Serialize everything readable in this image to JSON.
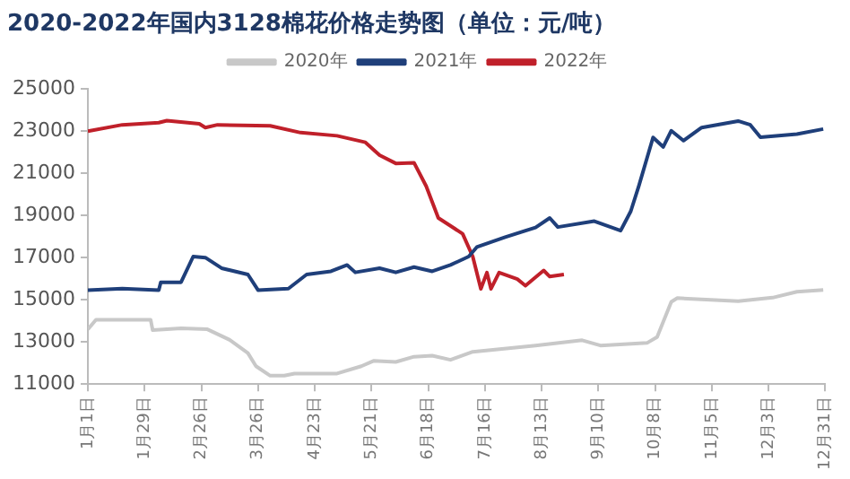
{
  "chart_data": {
    "type": "line",
    "title": "2020-2022年国内3128棉花价格走势图（单位：元/吨）",
    "xlim": [
      "--01-01",
      "--12-31"
    ],
    "xticks": [
      {
        "value": "--01-01",
        "label": "1月1日"
      },
      {
        "value": "--01-29",
        "label": "1月29日"
      },
      {
        "value": "--02-26",
        "label": "2月26日"
      },
      {
        "value": "--03-26",
        "label": "3月26日"
      },
      {
        "value": "--04-23",
        "label": "4月23日"
      },
      {
        "value": "--05-21",
        "label": "5月21日"
      },
      {
        "value": "--06-18",
        "label": "6月18日"
      },
      {
        "value": "--07-16",
        "label": "7月16日"
      },
      {
        "value": "--08-13",
        "label": "8月13日"
      },
      {
        "value": "--09-10",
        "label": "9月10日"
      },
      {
        "value": "--10-08",
        "label": "10月8日"
      },
      {
        "value": "--11-05",
        "label": "11月5日"
      },
      {
        "value": "--12-03",
        "label": "12月3日"
      },
      {
        "value": "--12-31",
        "label": "12月31日"
      }
    ],
    "ylim": [
      11000,
      25000
    ],
    "yticks": [
      11000,
      13000,
      15000,
      17000,
      19000,
      21000,
      23000,
      25000
    ],
    "grid": false,
    "legend": "top",
    "marker": "none",
    "line_style": "solid",
    "series": [
      {
        "name": "2020年",
        "color": "#c8c8c8",
        "x": [
          "--01-01",
          "--01-05",
          "--02-01",
          "--02-02",
          "--02-16",
          "--03-01",
          "--03-12",
          "--03-21",
          "--03-25",
          "--04-01",
          "--04-08",
          "--04-13",
          "--05-04",
          "--05-16",
          "--05-22",
          "--06-02",
          "--06-11",
          "--06-20",
          "--06-29",
          "--07-10",
          "--08-10",
          "--09-02",
          "--09-11",
          "--10-04",
          "--10-09",
          "--10-16",
          "--10-19",
          "--11-18",
          "--12-05",
          "--12-17",
          "--12-30"
        ],
        "values": [
          13600,
          14050,
          14050,
          13560,
          13650,
          13600,
          13100,
          12470,
          11850,
          11400,
          11400,
          11500,
          11500,
          11850,
          12100,
          12050,
          12300,
          12350,
          12150,
          12530,
          12830,
          13080,
          12830,
          12950,
          13230,
          14900,
          15080,
          14930,
          15100,
          15380,
          15470
        ]
      },
      {
        "name": "2021年",
        "color": "#1f3f7a",
        "x": [
          "--01-01",
          "--01-18",
          "--02-05",
          "--02-06",
          "--02-16",
          "--02-22",
          "--02-28",
          "--03-08",
          "--03-21",
          "--03-26",
          "--04-10",
          "--04-19",
          "--05-01",
          "--05-09",
          "--05-13",
          "--05-25",
          "--06-02",
          "--06-11",
          "--06-20",
          "--06-29",
          "--07-08",
          "--07-12",
          "--07-26",
          "--08-10",
          "--08-17",
          "--08-21",
          "--09-08",
          "--09-21",
          "--09-26",
          "--09-30",
          "--10-07",
          "--10-12",
          "--10-16",
          "--10-22",
          "--10-31",
          "--11-18",
          "--11-24",
          "--11-29",
          "--12-17",
          "--12-30"
        ],
        "values": [
          15460,
          15530,
          15460,
          15830,
          15830,
          17050,
          17000,
          16500,
          16200,
          15460,
          15530,
          16200,
          16350,
          16650,
          16300,
          16500,
          16300,
          16550,
          16350,
          16650,
          17050,
          17500,
          17970,
          18430,
          18880,
          18450,
          18730,
          18280,
          19200,
          20410,
          22700,
          22250,
          23020,
          22550,
          23170,
          23480,
          23300,
          22710,
          22860,
          23100
        ]
      },
      {
        "name": "2022年",
        "color": "#c0202a",
        "x": [
          "--01-01",
          "--01-18",
          "--02-05",
          "--02-09",
          "--02-25",
          "--02-28",
          "--03-06",
          "--04-01",
          "--04-16",
          "--05-04",
          "--05-18",
          "--05-25",
          "--06-02",
          "--06-11",
          "--06-17",
          "--06-23",
          "--07-05",
          "--07-10",
          "--07-14",
          "--07-17",
          "--07-19",
          "--07-23",
          "--08-01",
          "--08-05",
          "--08-14",
          "--08-17",
          "--08-24"
        ],
        "values": [
          23000,
          23300,
          23400,
          23500,
          23350,
          23170,
          23300,
          23250,
          22930,
          22780,
          22470,
          21860,
          21470,
          21500,
          20390,
          18880,
          18130,
          17050,
          15520,
          16290,
          15520,
          16290,
          15980,
          15670,
          16390,
          16100,
          16200
        ]
      }
    ]
  }
}
